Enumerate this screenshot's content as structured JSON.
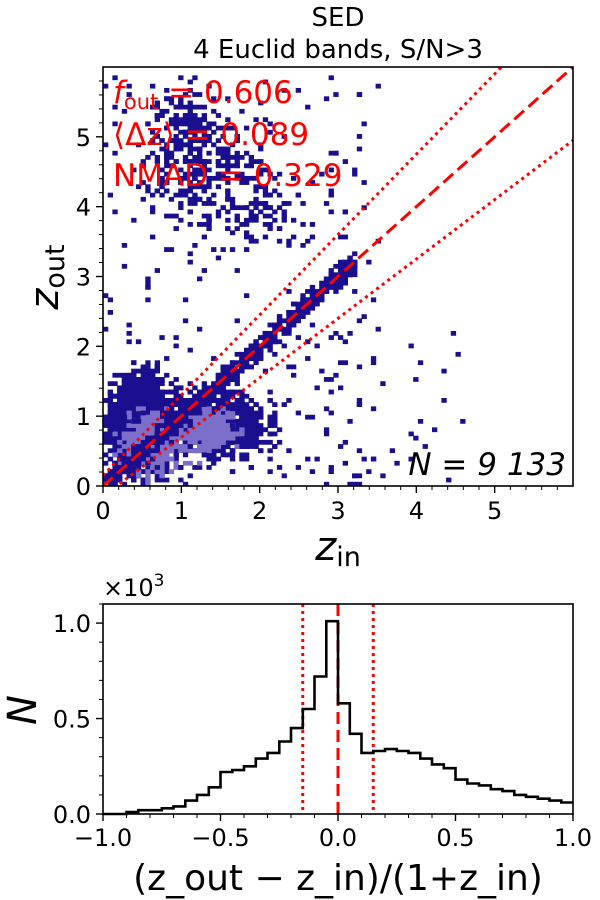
{
  "chart_data": [
    {
      "type": "heatmap",
      "title_line1": "SED",
      "title_line2": "4 Euclid bands, S/N>3",
      "xlabel": "z",
      "xlabel_sub": "in",
      "ylabel": "z",
      "ylabel_sub": "out",
      "xlim": [
        0,
        6
      ],
      "ylim": [
        0,
        6
      ],
      "x_ticks": [
        "0",
        "1",
        "2",
        "3",
        "4",
        "5"
      ],
      "y_ticks": [
        "0",
        "1",
        "2",
        "3",
        "4",
        "5"
      ],
      "grid": false,
      "stats": {
        "f_out_symbol": "f",
        "f_out_sub": "out",
        "f_out_value": " = 0.606",
        "mean_dz": "⟨Δz⟩ = 0.089",
        "nmad": "NMAD = 0.329"
      },
      "n_label": "N = 9 133",
      "lines": [
        {
          "style": "dashed",
          "color": "#ff0000",
          "relation": "z_out = z_in"
        },
        {
          "style": "dotted",
          "color": "#ff0000",
          "relation": "z_out = z_in + 0.15(1+z_in)"
        },
        {
          "style": "dotted",
          "color": "#ff0000",
          "relation": "z_out = z_in - 0.15(1+z_in)"
        }
      ],
      "colors": {
        "low": "#1a0f8f",
        "high": "#7b6fc9",
        "lines": "#ff0000"
      },
      "density_regions": [
        {
          "x": [
            0.0,
            1.0
          ],
          "y": [
            0.0,
            1.9
          ],
          "density": "high"
        },
        {
          "x": [
            1.0,
            2.4
          ],
          "y": [
            0.1,
            1.6
          ],
          "density": "high"
        },
        {
          "x": [
            0.0,
            3.3
          ],
          "y": [
            0.0,
            3.0
          ],
          "density": "medium",
          "note": "along z_out = z_in"
        },
        {
          "x": [
            0.4,
            2.6
          ],
          "y": [
            3.0,
            5.7
          ],
          "density": "low"
        },
        {
          "x": [
            0.0,
            5.0
          ],
          "y": [
            0.0,
            5.9
          ],
          "density": "sparse"
        }
      ]
    },
    {
      "type": "histogram",
      "xlabel": "(z_out − z_in)/(1+z_in)",
      "ylabel": "N",
      "multiplier_base": "×10",
      "multiplier_exp": "3",
      "xlim": [
        -1.0,
        1.0
      ],
      "ylim": [
        0.0,
        1.1
      ],
      "x_ticks": [
        "−1.0",
        "−0.5",
        "0.0",
        "0.5",
        "1.0"
      ],
      "y_ticks": [
        "0.0",
        "0.5",
        "1.0"
      ],
      "bin_edges_start": -1.0,
      "bin_width": 0.05,
      "counts": [
        0.0,
        0.0,
        0.01,
        0.02,
        0.02,
        0.03,
        0.04,
        0.07,
        0.1,
        0.14,
        0.22,
        0.23,
        0.25,
        0.29,
        0.32,
        0.38,
        0.45,
        0.55,
        0.72,
        1.01,
        0.58,
        0.42,
        0.32,
        0.33,
        0.34,
        0.33,
        0.32,
        0.29,
        0.26,
        0.24,
        0.18,
        0.16,
        0.15,
        0.13,
        0.12,
        0.1,
        0.09,
        0.08,
        0.07,
        0.06
      ],
      "counts_units": "×10^3",
      "vlines": [
        {
          "x": 0.0,
          "style": "dashed",
          "color": "#ff0000"
        },
        {
          "x": -0.15,
          "style": "dotted",
          "color": "#ff0000"
        },
        {
          "x": 0.15,
          "style": "dotted",
          "color": "#ff0000"
        }
      ]
    }
  ]
}
